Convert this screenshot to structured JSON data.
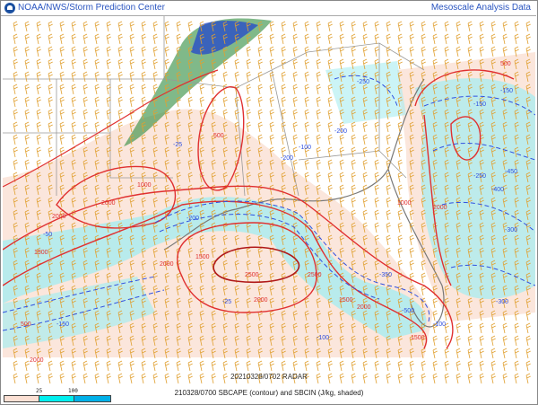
{
  "header": {
    "organization": "NOAA/NWS/Storm Prediction Center",
    "dataset": "Mesoscale Analysis Data",
    "logo_icon": "noaa-logo-icon"
  },
  "map": {
    "radar_label": "20210328/0702 RADAR",
    "title": "210328/0700 SBCAPE (contour) and SBCIN (J/kg, shaded)",
    "colors": {
      "cape_contour": "#e03030",
      "cin_contour": "#3050e0",
      "cin_shade_light": "#a8ecf0",
      "cape_bg": "#fbe6dc",
      "wind_barbs": "#e0a030",
      "borders": "#999999"
    },
    "cape_labels": [
      "2500",
      "2500",
      "2000",
      "2000",
      "2000",
      "2000",
      "1500",
      "1000",
      "2000",
      "500",
      "1500",
      "2000",
      "500",
      "1000",
      "1500",
      "1500",
      "2000",
      "500"
    ],
    "cin_labels": [
      "-25",
      "-100",
      "-150",
      "-200",
      "-250",
      "-300",
      "-400",
      "-450",
      "-100",
      "-200",
      "-150",
      "-50",
      "-25",
      "-300",
      "-250",
      "-500",
      "-150",
      "-100",
      "-350",
      "-200"
    ]
  },
  "legend": {
    "ticks": [
      "25",
      "100"
    ],
    "colors": [
      "#fbe0d4",
      "#00eeee",
      "#00b0e8"
    ]
  }
}
